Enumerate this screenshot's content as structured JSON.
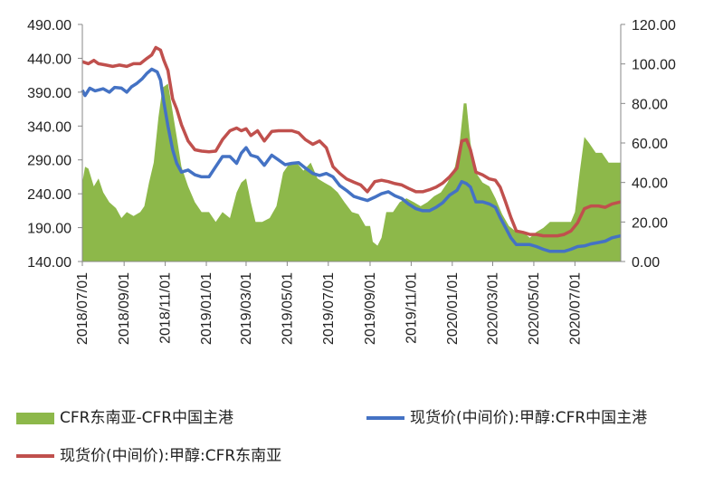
{
  "chart_data": {
    "type": "line",
    "x_ticks": [
      "2018/07/01",
      "2018/09/01",
      "2018/11/01",
      "2019/01/01",
      "2019/03/01",
      "2019/05/01",
      "2019/07/01",
      "2019/09/01",
      "2019/11/01",
      "2020/01/01",
      "2020/03/01",
      "2020/05/01",
      "2020/07/01"
    ],
    "y_left": {
      "min": 140,
      "max": 490,
      "ticks": [
        "140.00",
        "190.00",
        "240.00",
        "290.00",
        "340.00",
        "390.00",
        "440.00",
        "490.00"
      ]
    },
    "y_right": {
      "min": 0,
      "max": 120,
      "ticks": [
        "0.00",
        "20.00",
        "40.00",
        "60.00",
        "80.00",
        "100.00",
        "120.00"
      ]
    },
    "x_range": [
      "2018-07-01",
      "2020-09-07"
    ],
    "series": [
      {
        "name": "CFR东南亚-CFR中国主港",
        "type": "area",
        "axis": "right",
        "color": "#8DB84A",
        "points": [
          [
            "2018-07-01",
            40
          ],
          [
            "2018-07-05",
            48
          ],
          [
            "2018-07-10",
            47
          ],
          [
            "2018-07-18",
            38
          ],
          [
            "2018-07-25",
            42
          ],
          [
            "2018-08-01",
            35
          ],
          [
            "2018-08-10",
            30
          ],
          [
            "2018-08-20",
            27
          ],
          [
            "2018-08-28",
            22
          ],
          [
            "2018-09-05",
            25
          ],
          [
            "2018-09-15",
            23
          ],
          [
            "2018-09-25",
            25
          ],
          [
            "2018-10-01",
            28
          ],
          [
            "2018-10-08",
            40
          ],
          [
            "2018-10-15",
            50
          ],
          [
            "2018-10-22",
            73
          ],
          [
            "2018-10-28",
            88
          ],
          [
            "2018-11-05",
            90
          ],
          [
            "2018-11-10",
            80
          ],
          [
            "2018-11-18",
            63
          ],
          [
            "2018-11-25",
            48
          ],
          [
            "2018-12-05",
            38
          ],
          [
            "2018-12-15",
            30
          ],
          [
            "2018-12-25",
            25
          ],
          [
            "2019-01-05",
            25
          ],
          [
            "2019-01-15",
            20
          ],
          [
            "2019-01-25",
            25
          ],
          [
            "2019-02-05",
            22
          ],
          [
            "2019-02-15",
            35
          ],
          [
            "2019-02-22",
            40
          ],
          [
            "2019-03-01",
            42
          ],
          [
            "2019-03-08",
            30
          ],
          [
            "2019-03-15",
            20
          ],
          [
            "2019-03-25",
            20
          ],
          [
            "2019-04-05",
            22
          ],
          [
            "2019-04-15",
            28
          ],
          [
            "2019-04-25",
            45
          ],
          [
            "2019-05-05",
            50
          ],
          [
            "2019-05-15",
            50
          ],
          [
            "2019-05-25",
            46
          ],
          [
            "2019-06-05",
            50
          ],
          [
            "2019-06-15",
            42
          ],
          [
            "2019-06-25",
            40
          ],
          [
            "2019-07-05",
            38
          ],
          [
            "2019-07-15",
            35
          ],
          [
            "2019-07-25",
            30
          ],
          [
            "2019-08-05",
            25
          ],
          [
            "2019-08-15",
            24
          ],
          [
            "2019-08-25",
            18
          ],
          [
            "2019-09-01",
            18
          ],
          [
            "2019-09-05",
            10
          ],
          [
            "2019-09-12",
            8
          ],
          [
            "2019-09-18",
            12
          ],
          [
            "2019-09-25",
            25
          ],
          [
            "2019-10-05",
            25
          ],
          [
            "2019-10-15",
            30
          ],
          [
            "2019-10-25",
            32
          ],
          [
            "2019-11-05",
            30
          ],
          [
            "2019-11-15",
            28
          ],
          [
            "2019-11-25",
            30
          ],
          [
            "2019-12-05",
            33
          ],
          [
            "2019-12-15",
            35
          ],
          [
            "2019-12-25",
            40
          ],
          [
            "2020-01-05",
            48
          ],
          [
            "2020-01-12",
            60
          ],
          [
            "2020-01-18",
            80
          ],
          [
            "2020-01-22",
            80
          ],
          [
            "2020-01-28",
            60
          ],
          [
            "2020-02-05",
            45
          ],
          [
            "2020-02-15",
            40
          ],
          [
            "2020-02-25",
            38
          ],
          [
            "2020-03-05",
            32
          ],
          [
            "2020-03-15",
            24
          ],
          [
            "2020-03-25",
            18
          ],
          [
            "2020-04-05",
            15
          ],
          [
            "2020-04-15",
            15
          ],
          [
            "2020-04-25",
            12
          ],
          [
            "2020-05-05",
            15
          ],
          [
            "2020-05-15",
            17
          ],
          [
            "2020-05-25",
            20
          ],
          [
            "2020-06-05",
            20
          ],
          [
            "2020-06-15",
            20
          ],
          [
            "2020-06-25",
            20
          ],
          [
            "2020-07-01",
            25
          ],
          [
            "2020-07-08",
            45
          ],
          [
            "2020-07-15",
            63
          ],
          [
            "2020-07-22",
            60
          ],
          [
            "2020-08-01",
            55
          ],
          [
            "2020-08-10",
            55
          ],
          [
            "2020-08-20",
            50
          ],
          [
            "2020-09-07",
            50
          ]
        ]
      },
      {
        "name": "现货价(中间价):甲醇:CFR中国主港",
        "type": "line",
        "axis": "left",
        "color": "#4472C4",
        "points": [
          [
            "2018-07-01",
            393
          ],
          [
            "2018-07-05",
            385
          ],
          [
            "2018-07-12",
            396
          ],
          [
            "2018-07-20",
            392
          ],
          [
            "2018-08-01",
            395
          ],
          [
            "2018-08-10",
            390
          ],
          [
            "2018-08-18",
            397
          ],
          [
            "2018-08-28",
            396
          ],
          [
            "2018-09-05",
            390
          ],
          [
            "2018-09-12",
            398
          ],
          [
            "2018-09-20",
            403
          ],
          [
            "2018-09-28",
            410
          ],
          [
            "2018-10-05",
            418
          ],
          [
            "2018-10-12",
            424
          ],
          [
            "2018-10-20",
            420
          ],
          [
            "2018-10-25",
            408
          ],
          [
            "2018-10-30",
            375
          ],
          [
            "2018-11-05",
            340
          ],
          [
            "2018-11-12",
            305
          ],
          [
            "2018-11-18",
            285
          ],
          [
            "2018-11-25",
            272
          ],
          [
            "2018-12-05",
            275
          ],
          [
            "2018-12-15",
            268
          ],
          [
            "2018-12-25",
            265
          ],
          [
            "2019-01-05",
            265
          ],
          [
            "2019-01-15",
            280
          ],
          [
            "2019-01-25",
            295
          ],
          [
            "2019-02-05",
            295
          ],
          [
            "2019-02-15",
            285
          ],
          [
            "2019-02-22",
            300
          ],
          [
            "2019-03-01",
            308
          ],
          [
            "2019-03-08",
            297
          ],
          [
            "2019-03-18",
            294
          ],
          [
            "2019-03-28",
            282
          ],
          [
            "2019-04-08",
            297
          ],
          [
            "2019-04-18",
            290
          ],
          [
            "2019-04-28",
            283
          ],
          [
            "2019-05-08",
            285
          ],
          [
            "2019-05-18",
            286
          ],
          [
            "2019-05-28",
            278
          ],
          [
            "2019-06-08",
            270
          ],
          [
            "2019-06-18",
            267
          ],
          [
            "2019-06-28",
            270
          ],
          [
            "2019-07-08",
            265
          ],
          [
            "2019-07-18",
            252
          ],
          [
            "2019-07-28",
            245
          ],
          [
            "2019-08-08",
            236
          ],
          [
            "2019-08-18",
            233
          ],
          [
            "2019-08-28",
            230
          ],
          [
            "2019-09-08",
            235
          ],
          [
            "2019-09-18",
            240
          ],
          [
            "2019-09-28",
            243
          ],
          [
            "2019-10-08",
            237
          ],
          [
            "2019-10-18",
            233
          ],
          [
            "2019-10-28",
            225
          ],
          [
            "2019-11-08",
            218
          ],
          [
            "2019-11-18",
            215
          ],
          [
            "2019-11-28",
            215
          ],
          [
            "2019-12-08",
            220
          ],
          [
            "2019-12-18",
            227
          ],
          [
            "2019-12-28",
            238
          ],
          [
            "2020-01-08",
            245
          ],
          [
            "2020-01-15",
            258
          ],
          [
            "2020-01-22",
            255
          ],
          [
            "2020-01-28",
            250
          ],
          [
            "2020-02-05",
            228
          ],
          [
            "2020-02-15",
            228
          ],
          [
            "2020-02-25",
            225
          ],
          [
            "2020-03-05",
            220
          ],
          [
            "2020-03-12",
            205
          ],
          [
            "2020-03-20",
            190
          ],
          [
            "2020-03-28",
            175
          ],
          [
            "2020-04-05",
            165
          ],
          [
            "2020-04-15",
            165
          ],
          [
            "2020-04-25",
            165
          ],
          [
            "2020-05-05",
            162
          ],
          [
            "2020-05-15",
            158
          ],
          [
            "2020-05-25",
            155
          ],
          [
            "2020-06-05",
            155
          ],
          [
            "2020-06-15",
            155
          ],
          [
            "2020-06-25",
            158
          ],
          [
            "2020-07-05",
            162
          ],
          [
            "2020-07-15",
            163
          ],
          [
            "2020-07-25",
            166
          ],
          [
            "2020-08-05",
            168
          ],
          [
            "2020-08-15",
            170
          ],
          [
            "2020-08-25",
            175
          ],
          [
            "2020-09-07",
            178
          ]
        ]
      },
      {
        "name": "现货价(中间价):甲醇:CFR东南亚",
        "type": "line",
        "axis": "left",
        "color": "#C0504D",
        "points": [
          [
            "2018-07-01",
            435
          ],
          [
            "2018-07-10",
            432
          ],
          [
            "2018-07-18",
            437
          ],
          [
            "2018-07-25",
            432
          ],
          [
            "2018-08-05",
            430
          ],
          [
            "2018-08-15",
            428
          ],
          [
            "2018-08-25",
            430
          ],
          [
            "2018-09-05",
            428
          ],
          [
            "2018-09-15",
            432
          ],
          [
            "2018-09-25",
            432
          ],
          [
            "2018-10-05",
            440
          ],
          [
            "2018-10-12",
            445
          ],
          [
            "2018-10-18",
            456
          ],
          [
            "2018-10-25",
            452
          ],
          [
            "2018-10-30",
            437
          ],
          [
            "2018-11-05",
            422
          ],
          [
            "2018-11-12",
            380
          ],
          [
            "2018-11-18",
            365
          ],
          [
            "2018-11-25",
            342
          ],
          [
            "2018-12-05",
            318
          ],
          [
            "2018-12-15",
            305
          ],
          [
            "2018-12-25",
            303
          ],
          [
            "2019-01-05",
            302
          ],
          [
            "2019-01-15",
            303
          ],
          [
            "2019-01-25",
            320
          ],
          [
            "2019-02-05",
            333
          ],
          [
            "2019-02-15",
            337
          ],
          [
            "2019-02-22",
            333
          ],
          [
            "2019-03-01",
            336
          ],
          [
            "2019-03-08",
            326
          ],
          [
            "2019-03-18",
            333
          ],
          [
            "2019-03-28",
            318
          ],
          [
            "2019-04-08",
            332
          ],
          [
            "2019-04-18",
            333
          ],
          [
            "2019-04-28",
            333
          ],
          [
            "2019-05-08",
            333
          ],
          [
            "2019-05-18",
            330
          ],
          [
            "2019-05-28",
            320
          ],
          [
            "2019-06-08",
            313
          ],
          [
            "2019-06-18",
            318
          ],
          [
            "2019-06-28",
            308
          ],
          [
            "2019-07-08",
            280
          ],
          [
            "2019-07-18",
            270
          ],
          [
            "2019-07-28",
            262
          ],
          [
            "2019-08-08",
            257
          ],
          [
            "2019-08-18",
            253
          ],
          [
            "2019-08-28",
            243
          ],
          [
            "2019-09-08",
            258
          ],
          [
            "2019-09-18",
            260
          ],
          [
            "2019-09-28",
            258
          ],
          [
            "2019-10-08",
            255
          ],
          [
            "2019-10-18",
            253
          ],
          [
            "2019-10-28",
            248
          ],
          [
            "2019-11-08",
            243
          ],
          [
            "2019-11-18",
            243
          ],
          [
            "2019-11-28",
            246
          ],
          [
            "2019-12-08",
            250
          ],
          [
            "2019-12-18",
            256
          ],
          [
            "2019-12-28",
            265
          ],
          [
            "2020-01-08",
            278
          ],
          [
            "2020-01-15",
            318
          ],
          [
            "2020-01-22",
            320
          ],
          [
            "2020-01-28",
            305
          ],
          [
            "2020-02-05",
            272
          ],
          [
            "2020-02-15",
            268
          ],
          [
            "2020-02-25",
            262
          ],
          [
            "2020-03-05",
            260
          ],
          [
            "2020-03-12",
            250
          ],
          [
            "2020-03-20",
            228
          ],
          [
            "2020-03-28",
            205
          ],
          [
            "2020-04-05",
            185
          ],
          [
            "2020-04-15",
            183
          ],
          [
            "2020-04-25",
            180
          ],
          [
            "2020-05-05",
            180
          ],
          [
            "2020-05-15",
            178
          ],
          [
            "2020-05-25",
            178
          ],
          [
            "2020-06-05",
            178
          ],
          [
            "2020-06-15",
            180
          ],
          [
            "2020-06-25",
            185
          ],
          [
            "2020-07-05",
            197
          ],
          [
            "2020-07-15",
            218
          ],
          [
            "2020-07-25",
            222
          ],
          [
            "2020-08-05",
            222
          ],
          [
            "2020-08-15",
            220
          ],
          [
            "2020-08-25",
            225
          ],
          [
            "2020-09-07",
            228
          ]
        ]
      }
    ],
    "legend_position": "bottom",
    "grid": false
  }
}
